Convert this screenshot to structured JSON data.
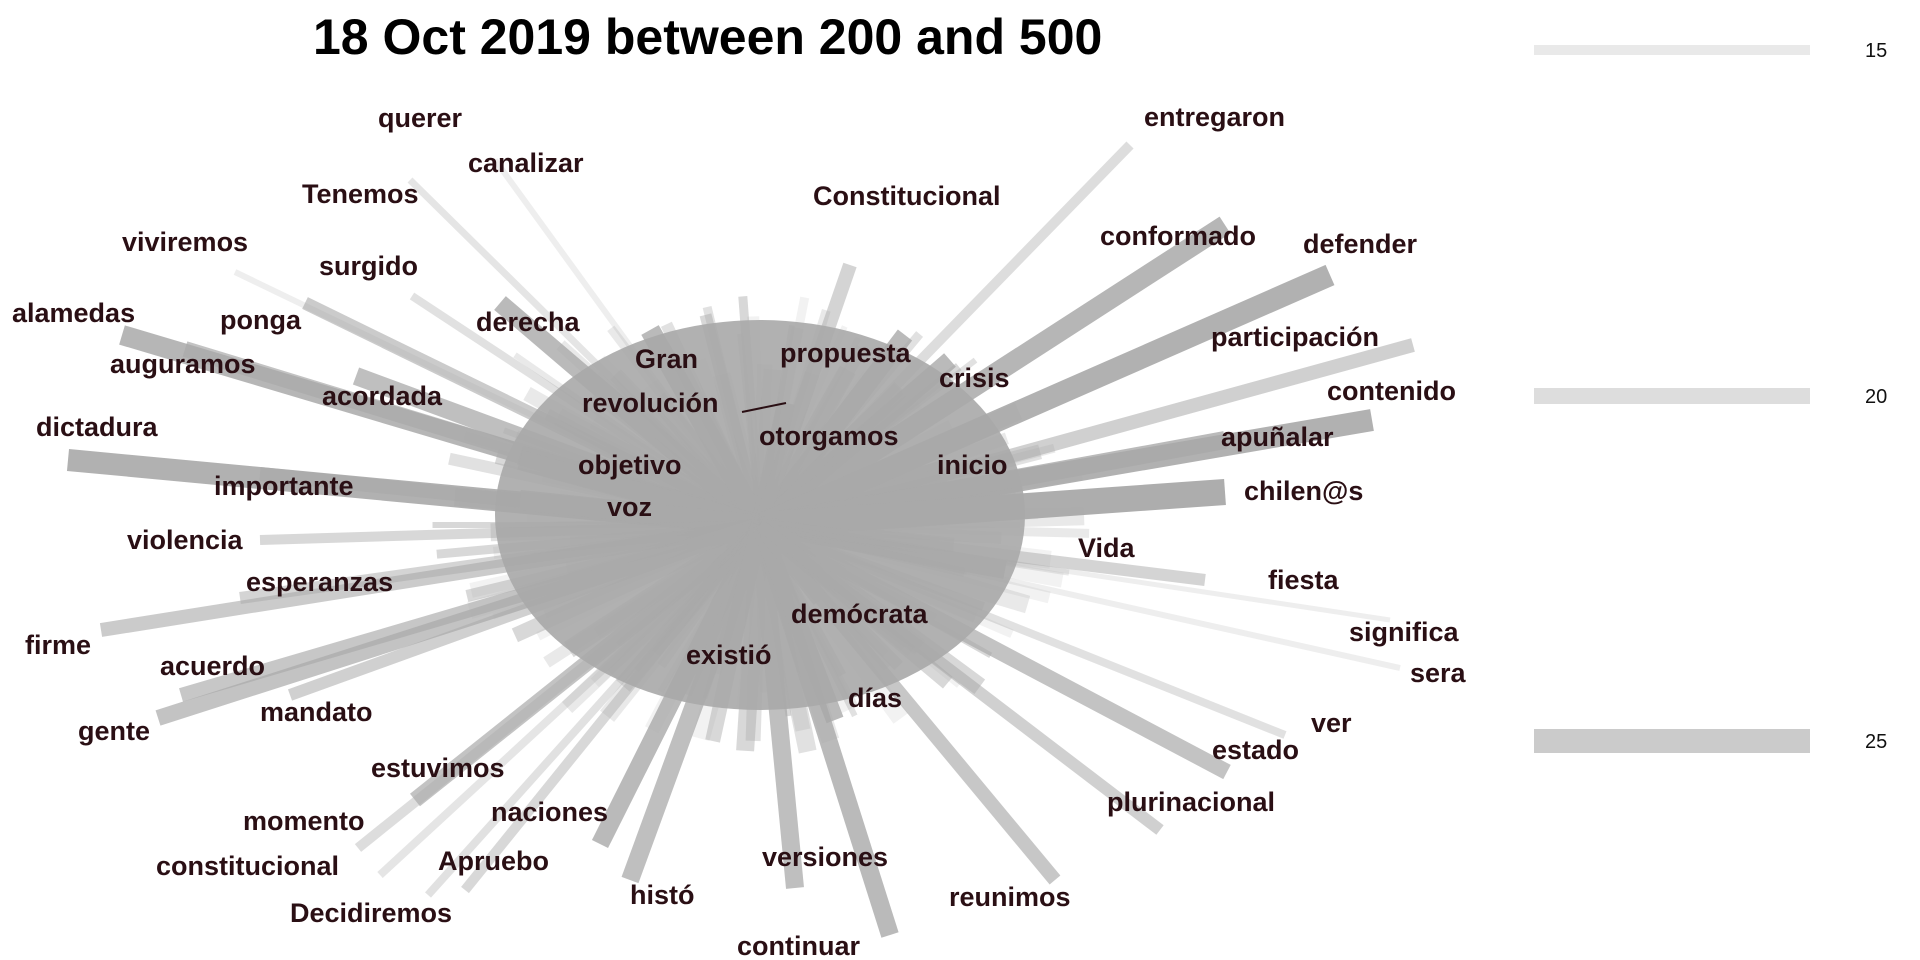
{
  "chart_data": {
    "type": "network",
    "title": "18 Oct 2019 between 200 and 500",
    "edge_color": "#a9a9a9",
    "label_color": "#2a0f14",
    "legend": {
      "placement": "right",
      "entries": [
        {
          "label": "15",
          "value": 15
        },
        {
          "label": "20",
          "value": 20
        },
        {
          "label": "25",
          "value": 25
        }
      ]
    },
    "labels": [
      "querer",
      "canalizar",
      "Tenemos",
      "viviremos",
      "surgido",
      "alamedas",
      "ponga",
      "derecha",
      "auguramos",
      "acordada",
      "Gran",
      "revolución",
      "dictadura",
      "objetivo",
      "importante",
      "voz",
      "violencia",
      "esperanzas",
      "firme",
      "acuerdo",
      "gente",
      "mandato",
      "estuvimos",
      "momento",
      "naciones",
      "constitucional",
      "Apruebo",
      "Decidiremos",
      "histó",
      "versiones",
      "continuar",
      "reunimos",
      "existió",
      "días",
      "demócrata",
      "propuesta",
      "otorgamos",
      "crisis",
      "inicio",
      "Constitucional",
      "entregaron",
      "conformado",
      "defender",
      "participación",
      "contenido",
      "apuñalar",
      "chilen@s",
      "Vida",
      "fiesta",
      "significa",
      "sera",
      "ver",
      "estado",
      "plurinacional"
    ]
  }
}
